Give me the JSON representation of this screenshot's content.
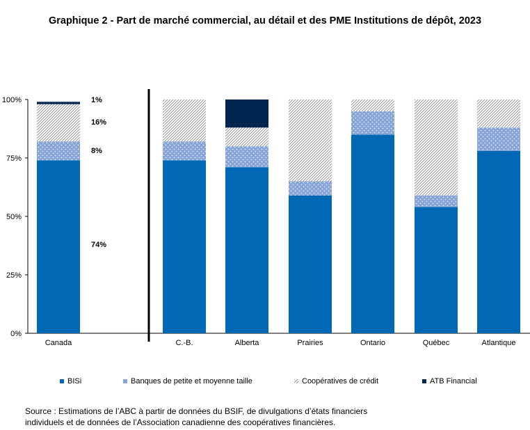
{
  "colors": {
    "bisi": "#0068b5",
    "small_mid": "#88a5d9",
    "credit_union": "#8c8c8c",
    "atb": "#002650"
  },
  "chart_data": {
    "type": "bar",
    "stacked": true,
    "title": "Graphique 2 - Part de marché commercial, au détail et des PME Institutions de dépôt, 2023",
    "categories": [
      "Canada",
      "C.-B.",
      "Alberta",
      "Prairies",
      "Ontario",
      "Québec",
      "Atlantique"
    ],
    "series": [
      {
        "name": "BISi",
        "values": [
          74,
          74,
          71,
          59,
          85,
          54,
          78
        ]
      },
      {
        "name": "Banques de petite et moyenne taille",
        "values": [
          8,
          8,
          9,
          6,
          10,
          5,
          10
        ]
      },
      {
        "name": "Coopératives de crédit",
        "values": [
          16,
          18,
          8,
          35,
          5,
          41,
          12
        ]
      },
      {
        "name": "ATB Financial",
        "values": [
          1,
          0,
          12,
          0,
          0,
          0,
          0
        ]
      }
    ],
    "data_labels": [
      {
        "category": "Canada",
        "series": "ATB Financial",
        "text": "1%"
      },
      {
        "category": "Canada",
        "series": "Coopératives de crédit",
        "text": "16%"
      },
      {
        "category": "Canada",
        "series": "Banques de petite et moyenne taille",
        "text": "8%"
      },
      {
        "category": "Canada",
        "series": "BISi",
        "text": "74%"
      }
    ],
    "y_ticks": [
      "0%",
      "25%",
      "50%",
      "75%",
      "100%"
    ],
    "ylim": [
      0,
      100
    ],
    "grid": false,
    "legend": "bottom"
  },
  "legend": [
    {
      "label": "BISi"
    },
    {
      "label": "Banques de petite et moyenne taille"
    },
    {
      "label": "Coopératives de crédit"
    },
    {
      "label": "ATB Financial"
    }
  ],
  "source": [
    "Source : Estimations de l’ABC à partir de données du BSIF, de divulgations d’états financiers",
    "individuels et de données de l’Association canadienne des coopératives financières."
  ]
}
